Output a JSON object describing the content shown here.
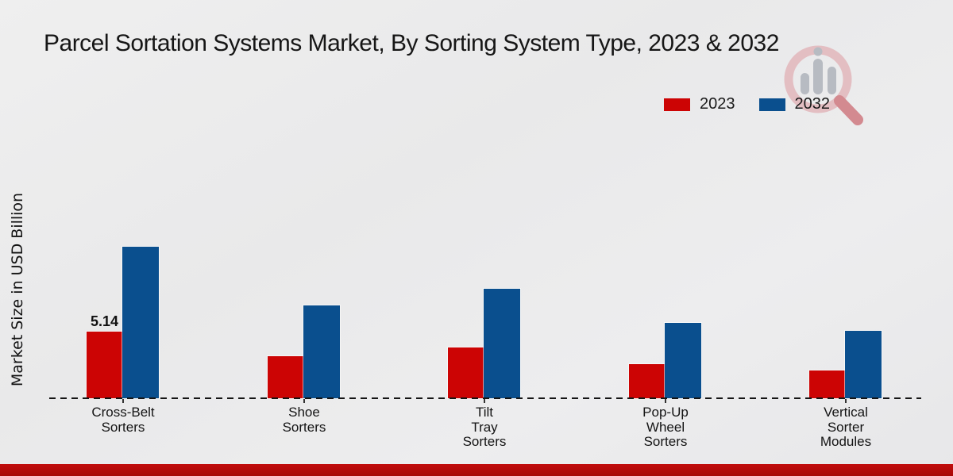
{
  "title": "Parcel Sortation Systems Market, By Sorting System Type, 2023 & 2032",
  "y_axis_label": "Market Size in USD Billion",
  "legend": {
    "items": [
      {
        "label": "2023",
        "color": "#cc0404"
      },
      {
        "label": "2032",
        "color": "#0a4f8e"
      }
    ]
  },
  "footer_bar_color": "#b30b0b",
  "watermark": {
    "name": "market-research-logo",
    "ring_color": "#e3bcc0",
    "handle_color": "#d2858c",
    "bar_color": "#b5b9c0"
  },
  "chart_data": {
    "type": "bar",
    "title": "Parcel Sortation Systems Market, By Sorting System Type, 2023 & 2032",
    "xlabel": "",
    "ylabel": "Market Size in USD Billion",
    "categories": [
      "Cross-Belt Sorters",
      "Shoe Sorters",
      "Tilt Tray Sorters",
      "Pop-Up Wheel Sorters",
      "Vertical Sorter Modules"
    ],
    "category_display_lines": [
      [
        "Cross-Belt",
        "Sorters"
      ],
      [
        "Shoe",
        "Sorters"
      ],
      [
        "Tilt",
        "Tray",
        "Sorters"
      ],
      [
        "Pop-Up",
        "Wheel",
        "Sorters"
      ],
      [
        "Vertical",
        "Sorter",
        "Modules"
      ]
    ],
    "series": [
      {
        "name": "2023",
        "color": "#cc0404",
        "values": [
          5.14,
          3.24,
          3.92,
          2.63,
          2.14
        ]
      },
      {
        "name": "2032",
        "color": "#0a4f8e",
        "values": [
          11.69,
          7.16,
          8.44,
          5.81,
          5.2
        ]
      }
    ],
    "data_labels": [
      {
        "series": "2023",
        "category": "Cross-Belt Sorters",
        "text": "5.14"
      }
    ],
    "ylim": [
      0,
      12.5
    ],
    "grid": false,
    "axis_style": "dashed-zero-baseline",
    "legend_position": "top-right"
  }
}
